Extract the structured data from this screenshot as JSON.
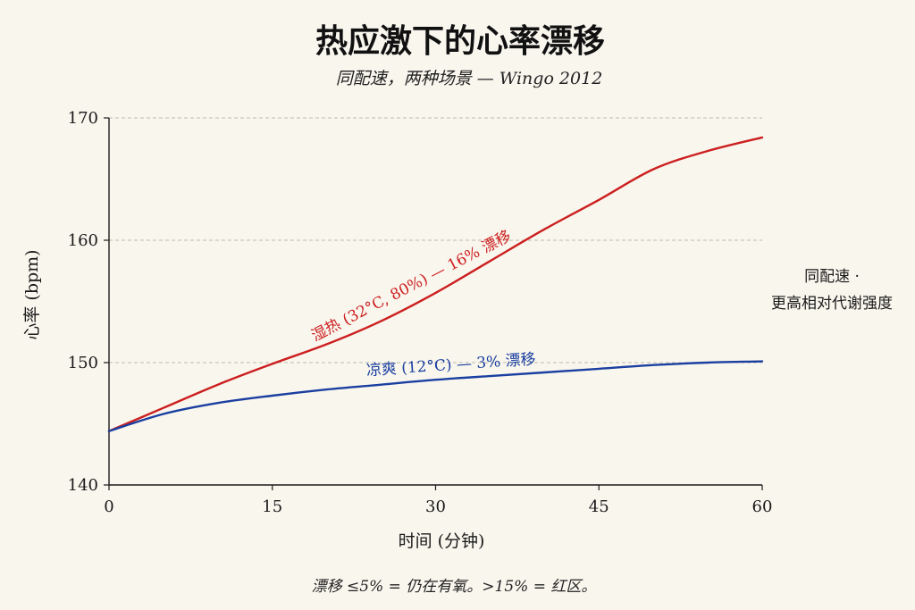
{
  "chart_data": {
    "type": "line",
    "title": "热应激下的心率漂移",
    "subtitle": "同配速，两种场景 — Wingo 2012",
    "xlabel": "时间 (分钟)",
    "ylabel": "心率 (bpm)",
    "xlim": [
      0,
      60
    ],
    "ylim": [
      140,
      170
    ],
    "xticks": [
      0,
      15,
      30,
      45,
      60
    ],
    "yticks": [
      140,
      150,
      160,
      170
    ],
    "grid": "horizontal dashed",
    "series": [
      {
        "name": "湿热 (32°C, 80%) — 16% 漂移",
        "color": "#cc1f1f",
        "x": [
          0,
          5,
          10,
          15,
          20,
          25,
          30,
          35,
          40,
          45,
          50,
          55,
          60
        ],
        "y": [
          144.4,
          146.3,
          148.2,
          149.9,
          151.5,
          153.4,
          155.7,
          158.3,
          160.9,
          163.3,
          165.8,
          167.3,
          168.4
        ]
      },
      {
        "name": "凉爽 (12°C) — 3% 漂移",
        "color": "#1a3fa0",
        "x": [
          0,
          5,
          10,
          15,
          20,
          25,
          30,
          35,
          40,
          45,
          50,
          55,
          60
        ],
        "y": [
          144.4,
          145.8,
          146.7,
          147.3,
          147.8,
          148.2,
          148.6,
          148.9,
          149.2,
          149.5,
          149.8,
          150.0,
          150.1
        ]
      }
    ],
    "annotations": [
      "同配速 ·",
      "更高相对代谢强度"
    ],
    "footnote": "漂移 ≤5% = 仍在有氧。>15% = 红区。"
  }
}
